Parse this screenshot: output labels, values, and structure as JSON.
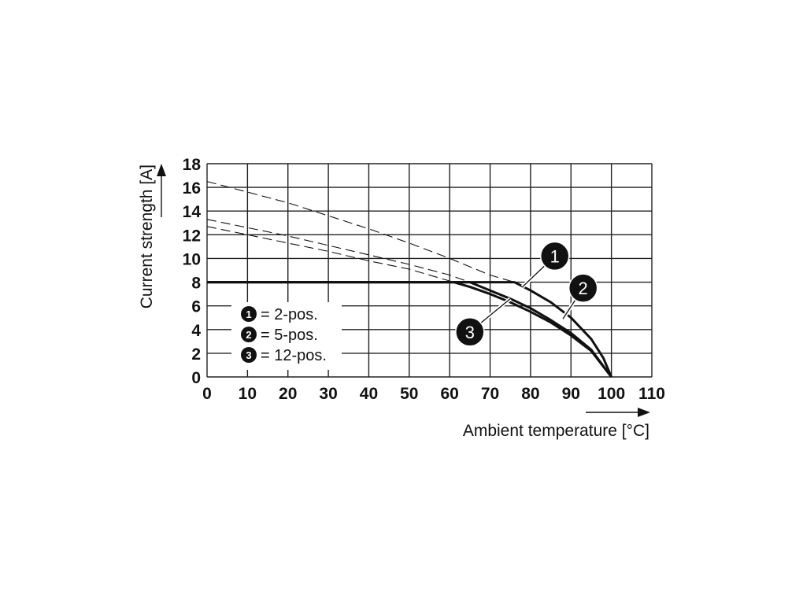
{
  "chart_data": {
    "type": "line",
    "xlabel": "Ambient temperature [°C]",
    "ylabel": "Current strength [A]",
    "xlim": [
      0,
      110
    ],
    "ylim": [
      0,
      18
    ],
    "xticks": [
      0,
      10,
      20,
      30,
      40,
      50,
      60,
      70,
      80,
      90,
      100,
      110
    ],
    "yticks": [
      0,
      2,
      4,
      6,
      8,
      10,
      12,
      14,
      16,
      18
    ],
    "grid": true,
    "legend_position": "bottom-left",
    "series": [
      {
        "marker": "1",
        "label": "= 2-pos.",
        "style": "solid",
        "points": [
          [
            0,
            8
          ],
          [
            76,
            8
          ],
          [
            80,
            7.3
          ],
          [
            85,
            6.3
          ],
          [
            90,
            5.0
          ],
          [
            95,
            3.2
          ],
          [
            98,
            1.6
          ],
          [
            100,
            0
          ]
        ],
        "extension": {
          "style": "dashed",
          "points": [
            [
              0,
              16.5
            ],
            [
              10,
              15.6
            ],
            [
              20,
              14.7
            ],
            [
              30,
              13.6
            ],
            [
              40,
              12.5
            ],
            [
              50,
              11.3
            ],
            [
              60,
              10.0
            ],
            [
              70,
              8.6
            ],
            [
              76,
              8.0
            ]
          ]
        }
      },
      {
        "marker": "2",
        "label": "= 5-pos.",
        "style": "solid",
        "points": [
          [
            0,
            8
          ],
          [
            65,
            8
          ],
          [
            70,
            7.3
          ],
          [
            75,
            6.6
          ],
          [
            80,
            5.8
          ],
          [
            85,
            4.8
          ],
          [
            90,
            3.7
          ],
          [
            95,
            2.3
          ],
          [
            100,
            0
          ]
        ],
        "extension": {
          "style": "dashed",
          "points": [
            [
              0,
              13.3
            ],
            [
              10,
              12.6
            ],
            [
              20,
              11.9
            ],
            [
              30,
              11.1
            ],
            [
              40,
              10.3
            ],
            [
              50,
              9.5
            ],
            [
              60,
              8.6
            ],
            [
              65,
              8.0
            ]
          ]
        }
      },
      {
        "marker": "3",
        "label": "= 12-pos.",
        "style": "solid",
        "points": [
          [
            0,
            8
          ],
          [
            61,
            8
          ],
          [
            65,
            7.6
          ],
          [
            70,
            7.0
          ],
          [
            75,
            6.3
          ],
          [
            80,
            5.5
          ],
          [
            85,
            4.6
          ],
          [
            90,
            3.5
          ],
          [
            95,
            2.2
          ],
          [
            100,
            0
          ]
        ],
        "extension": {
          "style": "dashed",
          "points": [
            [
              0,
              12.7
            ],
            [
              10,
              12.0
            ],
            [
              20,
              11.3
            ],
            [
              30,
              10.6
            ],
            [
              40,
              9.8
            ],
            [
              50,
              9.1
            ],
            [
              61,
              8.0
            ]
          ]
        }
      }
    ],
    "annotations": [
      {
        "label": "1",
        "at": [
          86,
          10.2
        ],
        "points_to": [
          78,
          7.6
        ]
      },
      {
        "label": "2",
        "at": [
          93,
          7.5
        ],
        "points_to": [
          88,
          4.9
        ]
      },
      {
        "label": "3",
        "at": [
          65,
          3.8
        ],
        "points_to": [
          75,
          6.6
        ]
      }
    ],
    "colors": {
      "line": "#111111",
      "grid": "#222222",
      "background": "#ffffff"
    }
  }
}
